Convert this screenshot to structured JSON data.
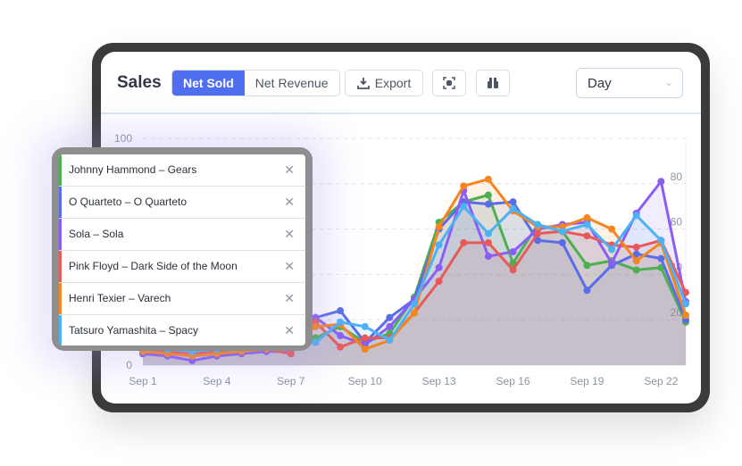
{
  "header": {
    "title": "Sales",
    "tabs": [
      {
        "label": "Net Sold",
        "active": true
      },
      {
        "label": "Net Revenue",
        "active": false
      }
    ],
    "export_label": "Export",
    "icons": [
      "screenshot-icon",
      "binoculars-icon"
    ],
    "period_select": "Day"
  },
  "legend": {
    "items": [
      {
        "label": "Johnny Hammond – Gears",
        "color": "#4caf50"
      },
      {
        "label": "O Quarteto – O Quarteto",
        "color": "#5a6de8"
      },
      {
        "label": "Sola – Sola",
        "color": "#8b5cf6"
      },
      {
        "label": "Pink Floyd – Dark Side of the Moon",
        "color": "#e85a5a"
      },
      {
        "label": "Henri Texier – Varech",
        "color": "#f5851f"
      },
      {
        "label": "Tatsuro Yamashita – Spacy",
        "color": "#4db2f5"
      }
    ]
  },
  "chart_data": {
    "type": "line",
    "x": [
      "Sep 1",
      "Sep 2",
      "Sep 3",
      "Sep 4",
      "Sep 5",
      "Sep 6",
      "Sep 7",
      "Sep 8",
      "Sep 9",
      "Sep 10",
      "Sep 11",
      "Sep 12",
      "Sep 13",
      "Sep 14",
      "Sep 15",
      "Sep 16",
      "Sep 17",
      "Sep 18",
      "Sep 19",
      "Sep 20",
      "Sep 21",
      "Sep 22",
      "Sep 23"
    ],
    "xticks": [
      "Sep 1",
      "Sep 4",
      "Sep 7",
      "Sep 10",
      "Sep 13",
      "Sep 16",
      "Sep 19",
      "Sep 22"
    ],
    "yticks": [
      0,
      20,
      40,
      60,
      80,
      100
    ],
    "ylim": [
      0,
      100
    ],
    "grid": true,
    "series": [
      {
        "name": "Johnny Hammond – Gears",
        "values": [
          6,
          7,
          5,
          6,
          7,
          8,
          8,
          12,
          17,
          10,
          14,
          30,
          63,
          72,
          75,
          45,
          62,
          59,
          44,
          46,
          42,
          43,
          19
        ]
      },
      {
        "name": "O Quarteto – O Quarteto",
        "values": [
          5,
          6,
          4,
          5,
          6,
          7,
          7,
          21,
          24,
          10,
          21,
          29,
          60,
          72,
          71,
          72,
          55,
          54,
          33,
          44,
          49,
          47,
          20
        ]
      },
      {
        "name": "Sola – Sola",
        "values": [
          5,
          4,
          2,
          4,
          5,
          6,
          6,
          21,
          13,
          9,
          17,
          29,
          43,
          77,
          48,
          50,
          60,
          62,
          63,
          45,
          67,
          81,
          28
        ]
      },
      {
        "name": "Pink Floyd – Dark Side of the Moon",
        "values": [
          7,
          6,
          5,
          6,
          8,
          7,
          5,
          19,
          8,
          12,
          12,
          23,
          37,
          54,
          54,
          42,
          58,
          59,
          57,
          53,
          52,
          55,
          32
        ]
      },
      {
        "name": "Henri Texier – Varech",
        "values": [
          6,
          5,
          4,
          5,
          6,
          7,
          8,
          17,
          18,
          7,
          11,
          23,
          61,
          79,
          82,
          68,
          61,
          61,
          65,
          60,
          46,
          54,
          22
        ]
      },
      {
        "name": "Tatsuro Yamashita – Spacy",
        "values": [
          8,
          7,
          6,
          7,
          8,
          9,
          9,
          10,
          19,
          17,
          11,
          27,
          53,
          70,
          58,
          69,
          62,
          59,
          62,
          51,
          66,
          55,
          27
        ]
      }
    ]
  }
}
